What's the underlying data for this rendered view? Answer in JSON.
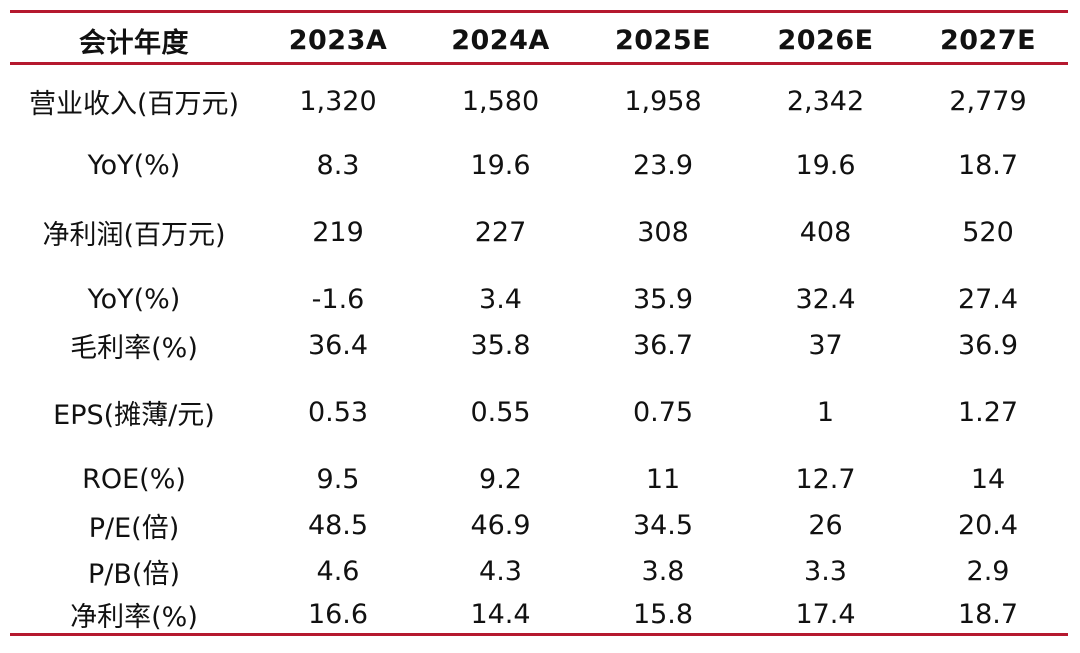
{
  "table": {
    "header": [
      "会计年度",
      "2023A",
      "2024A",
      "2025E",
      "2026E",
      "2027E"
    ],
    "rows": [
      [
        "营业收入(百万元)",
        "1,320",
        "1,580",
        "1,958",
        "2,342",
        "2,779"
      ],
      [
        "YoY(%)",
        "8.3",
        "19.6",
        "23.9",
        "19.6",
        "18.7"
      ],
      [
        "净利润(百万元)",
        "219",
        "227",
        "308",
        "408",
        "520"
      ],
      [
        "YoY(%)",
        "-1.6",
        "3.4",
        "35.9",
        "32.4",
        "27.4"
      ],
      [
        "毛利率(%)",
        "36.4",
        "35.8",
        "36.7",
        "37",
        "36.9"
      ],
      [
        "EPS(摊薄/元)",
        "0.53",
        "0.55",
        "0.75",
        "1",
        "1.27"
      ],
      [
        "ROE(%)",
        "9.5",
        "9.2",
        "11",
        "12.7",
        "14"
      ],
      [
        "P/E(倍)",
        "48.5",
        "46.9",
        "34.5",
        "26",
        "20.4"
      ],
      [
        "P/B(倍)",
        "4.6",
        "4.3",
        "3.8",
        "3.3",
        "2.9"
      ],
      [
        "净利率(%)",
        "16.6",
        "14.4",
        "15.8",
        "17.4",
        "18.7"
      ]
    ]
  },
  "colors": {
    "rule": "#b5182f",
    "text": "#111111"
  }
}
